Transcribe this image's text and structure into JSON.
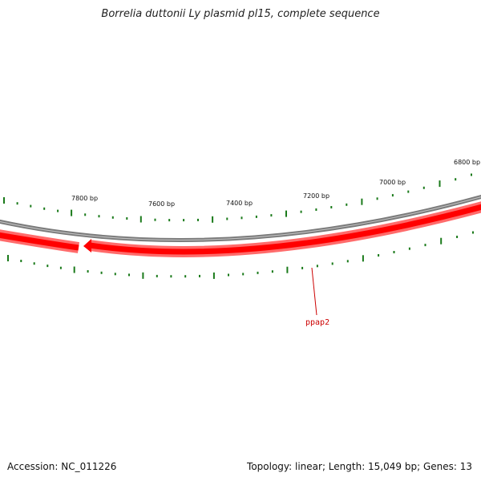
{
  "title": "Borrelia duttonii Ly plasmid pl15, complete sequence",
  "footer": {
    "accession": "Accession: NC_011226",
    "topology": "Topology: linear; Length: 15,049 bp; Genes: 13"
  },
  "scale_labels": [
    "7800 bp",
    "7600 bp",
    "7400 bp",
    "7200 bp",
    "7000 bp",
    "6800 bp"
  ],
  "genes": [
    {
      "name": "ppap2",
      "color": "#ff0000"
    }
  ],
  "colors": {
    "backbone": "#808080",
    "gene": "#ff0000",
    "tick": "#1a7a1a"
  }
}
